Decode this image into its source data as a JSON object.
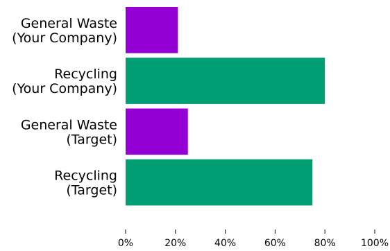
{
  "chart_data": {
    "type": "bar",
    "orientation": "horizontal",
    "categories": [
      [
        "General Waste",
        "(Your Company)"
      ],
      [
        "Recycling",
        "(Your Company)"
      ],
      [
        "General Waste",
        "(Target)"
      ],
      [
        "Recycling",
        "(Target)"
      ]
    ],
    "values": [
      21,
      80,
      25,
      75
    ],
    "bar_colors": [
      "#9400d3",
      "#009e73",
      "#9400d3",
      "#009e73"
    ],
    "xlim": [
      0,
      100
    ],
    "xticks": [
      0,
      20,
      40,
      60,
      80,
      100
    ],
    "xtick_labels": [
      "0%",
      "20%",
      "40%",
      "60%",
      "80%",
      "100%"
    ],
    "grid": false,
    "legend": "none"
  }
}
